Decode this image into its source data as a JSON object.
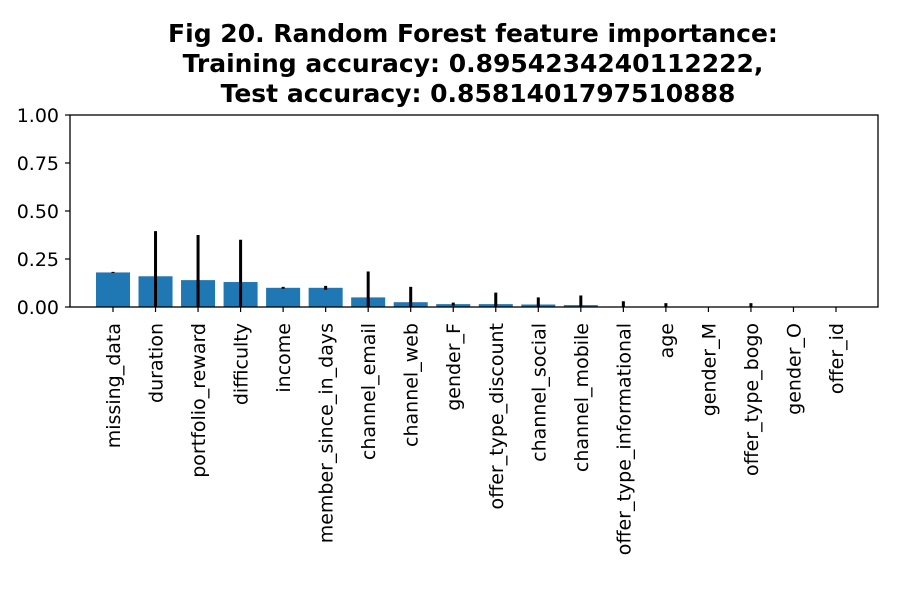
{
  "chart_data": {
    "type": "bar",
    "title_lines": [
      "Fig 20. Random Forest feature importance:",
      "Training accuracy: 0.8954234240112222,",
      "Test accuracy: 0.8581401797510888"
    ],
    "xlabel": "",
    "ylabel": "",
    "ylim": [
      0,
      1
    ],
    "yticks": [
      "0.00",
      "0.25",
      "0.50",
      "0.75",
      "1.00"
    ],
    "grid": false,
    "bar_color": "#1f77b4",
    "errorbar_color": "#000000",
    "categories": [
      "missing_data",
      "duration",
      "portfolio_reward",
      "difficulty",
      "income",
      "member_since_in_days",
      "channel_email",
      "channel_web",
      "gender_F",
      "offer_type_discount",
      "channel_social",
      "channel_mobile",
      "offer_type_informational",
      "age",
      "gender_M",
      "offer_type_bogo",
      "gender_O",
      "offer_id"
    ],
    "values": [
      0.18,
      0.16,
      0.14,
      0.13,
      0.1,
      0.1,
      0.05,
      0.025,
      0.015,
      0.015,
      0.013,
      0.01,
      0.0,
      0.0,
      0.0,
      0.0,
      0.0,
      0.0
    ],
    "errors": [
      0.003,
      0.235,
      0.235,
      0.22,
      0.005,
      0.01,
      0.135,
      0.08,
      0.008,
      0.06,
      0.037,
      0.05,
      0.03,
      0.02,
      0.002,
      0.02,
      0.002,
      0.002
    ]
  }
}
